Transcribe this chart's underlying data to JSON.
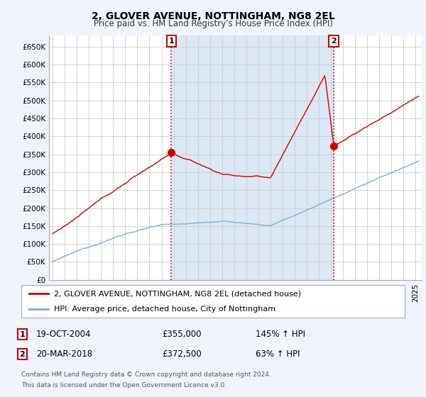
{
  "title": "2, GLOVER AVENUE, NOTTINGHAM, NG8 2EL",
  "subtitle": "Price paid vs. HM Land Registry's House Price Index (HPI)",
  "ylim": [
    0,
    680000
  ],
  "xlim_start": 1994.7,
  "xlim_end": 2025.5,
  "sale1_x": 2004.8,
  "sale1_y": 355000,
  "sale1_label": "1",
  "sale2_x": 2018.22,
  "sale2_y": 372500,
  "sale2_label": "2",
  "legend_line1": "2, GLOVER AVENUE, NOTTINGHAM, NG8 2EL (detached house)",
  "legend_line2": "HPI: Average price, detached house, City of Nottingham",
  "table_row1": [
    "1",
    "19-OCT-2004",
    "£355,000",
    "145% ↑ HPI"
  ],
  "table_row2": [
    "2",
    "20-MAR-2018",
    "£372,500",
    "63% ↑ HPI"
  ],
  "footnote1": "Contains HM Land Registry data © Crown copyright and database right 2024.",
  "footnote2": "This data is licensed under the Open Government Licence v3.0.",
  "red_color": "#cc0000",
  "blue_color": "#7bafd4",
  "shade_color": "#dce8f5",
  "background_color": "#f0f4ff",
  "plot_bg_color": "#ffffff",
  "grid_color": "#cccccc"
}
